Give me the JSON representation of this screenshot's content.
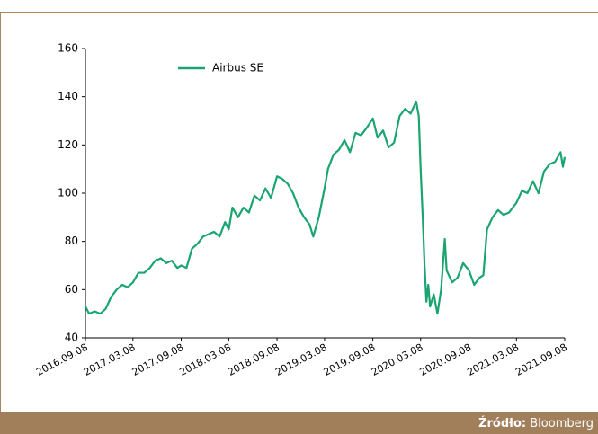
{
  "chart_data": {
    "type": "line",
    "series": [
      {
        "name": "Airbus SE",
        "color": "#1aa570",
        "x": [
          "2016.09.08",
          "2016.09.22",
          "2016.10.13",
          "2016.11.03",
          "2016.11.24",
          "2016.12.15",
          "2017.01.05",
          "2017.01.26",
          "2017.02.16",
          "2017.03.08",
          "2017.03.29",
          "2017.04.20",
          "2017.05.11",
          "2017.06.01",
          "2017.06.22",
          "2017.07.13",
          "2017.08.03",
          "2017.08.24",
          "2017.09.08",
          "2017.09.28",
          "2017.10.19",
          "2017.11.09",
          "2017.11.30",
          "2017.12.21",
          "2018.01.11",
          "2018.02.01",
          "2018.02.22",
          "2018.03.08",
          "2018.03.22",
          "2018.04.12",
          "2018.05.03",
          "2018.05.24",
          "2018.06.14",
          "2018.07.05",
          "2018.07.26",
          "2018.08.16",
          "2018.09.08",
          "2018.09.27",
          "2018.10.18",
          "2018.11.08",
          "2018.11.29",
          "2018.12.20",
          "2019.01.10",
          "2019.01.24",
          "2019.02.14",
          "2019.03.08",
          "2019.03.21",
          "2019.04.11",
          "2019.05.02",
          "2019.05.23",
          "2019.06.13",
          "2019.07.04",
          "2019.07.25",
          "2019.08.15",
          "2019.09.08",
          "2019.09.26",
          "2019.10.17",
          "2019.11.07",
          "2019.11.28",
          "2019.12.19",
          "2020.01.09",
          "2020.01.30",
          "2020.02.20",
          "2020.03.01",
          "2020.03.08",
          "2020.03.16",
          "2020.03.23",
          "2020.03.30",
          "2020.04.06",
          "2020.04.13",
          "2020.04.27",
          "2020.05.11",
          "2020.05.25",
          "2020.06.08",
          "2020.06.15",
          "2020.07.06",
          "2020.07.27",
          "2020.08.17",
          "2020.09.08",
          "2020.09.28",
          "2020.10.19",
          "2020.11.02",
          "2020.11.16",
          "2020.12.07",
          "2020.12.28",
          "2021.01.18",
          "2021.02.08",
          "2021.03.08",
          "2021.03.29",
          "2021.04.19",
          "2021.05.10",
          "2021.05.31",
          "2021.06.21",
          "2021.07.12",
          "2021.08.02",
          "2021.08.23",
          "2021.09.01",
          "2021.09.08"
        ],
        "values": [
          53,
          50,
          51,
          50,
          52,
          57,
          60,
          62,
          61,
          63,
          67,
          67,
          69,
          72,
          73,
          71,
          72,
          69,
          70,
          69,
          77,
          79,
          82,
          83,
          84,
          82,
          88,
          85,
          94,
          90,
          94,
          92,
          99,
          97,
          102,
          98,
          107,
          106,
          104,
          100,
          94,
          90,
          87,
          82,
          90,
          102,
          110,
          116,
          118,
          122,
          117,
          125,
          124,
          127,
          131,
          123,
          126,
          119,
          121,
          132,
          135,
          133,
          138,
          132,
          110,
          90,
          70,
          55,
          62,
          53,
          58,
          50,
          60,
          81,
          68,
          63,
          65,
          71,
          68,
          62,
          65,
          66,
          85,
          90,
          93,
          91,
          92,
          96,
          101,
          100,
          105,
          100,
          109,
          112,
          113,
          117,
          111,
          115
        ]
      }
    ],
    "xlim": [
      "2016.09.08",
      "2021.09.08"
    ],
    "xticks": [
      "2016.09.08",
      "2017.03.08",
      "2017.09.08",
      "2018.03.08",
      "2018.09.08",
      "2019.03.08",
      "2019.09.08",
      "2020.03.08",
      "2020.09.08",
      "2021.03.08",
      "2021.09.08"
    ],
    "ylim": [
      40,
      160
    ],
    "yticks": [
      40,
      60,
      80,
      100,
      120,
      140,
      160
    ],
    "legend": "top-left"
  },
  "footer": {
    "source_label": "Źródło:",
    "source": "Bloomberg"
  }
}
